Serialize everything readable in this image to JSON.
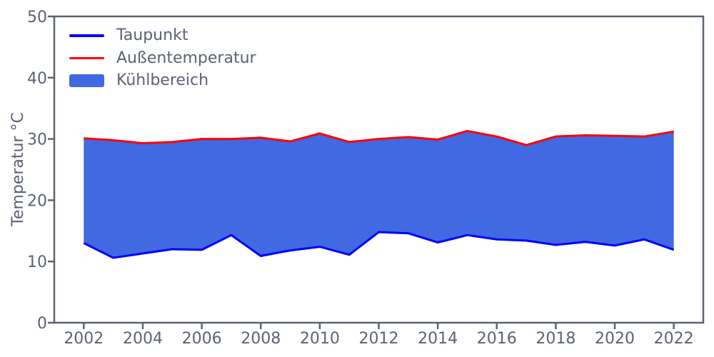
{
  "axes": {
    "ylabel": "Temperatur °C",
    "xlabel": "",
    "axis_color": "#5b6372",
    "text_color": "#5b6372",
    "background": "#ffffff",
    "xlim": [
      2001,
      2023
    ],
    "ylim": [
      0,
      50
    ],
    "xticks": [
      2002,
      2004,
      2006,
      2008,
      2010,
      2012,
      2014,
      2016,
      2018,
      2020,
      2022
    ],
    "yticks": [
      0,
      10,
      20,
      30,
      40,
      50
    ],
    "grid": false
  },
  "legend": {
    "position": "upper left",
    "items": [
      {
        "label": "Taupunkt",
        "swatch": "line",
        "color": "#0000ff"
      },
      {
        "label": "Außentemperatur",
        "swatch": "line",
        "color": "#ff0000"
      },
      {
        "label": "Kühlbereich",
        "swatch": "patch",
        "color": "#4169e1"
      }
    ]
  },
  "chart_data": {
    "type": "area",
    "title": "",
    "xlabel": "",
    "ylabel": "Temperatur °C",
    "xlim": [
      2001,
      2023
    ],
    "ylim": [
      0,
      50
    ],
    "legend_position": "upper left",
    "grid": false,
    "x": [
      2002,
      2003,
      2004,
      2005,
      2006,
      2007,
      2008,
      2009,
      2010,
      2011,
      2012,
      2013,
      2014,
      2015,
      2016,
      2017,
      2018,
      2019,
      2020,
      2021,
      2022
    ],
    "series": [
      {
        "name": "Taupunkt",
        "color": "#0000ff",
        "values": [
          13.0,
          10.6,
          11.3,
          12.0,
          11.9,
          14.3,
          10.9,
          11.8,
          12.4,
          11.1,
          14.8,
          14.6,
          13.1,
          14.3,
          13.6,
          13.4,
          12.7,
          13.2,
          12.6,
          13.6,
          11.9
        ]
      },
      {
        "name": "Außentemperatur",
        "color": "#ff0000",
        "values": [
          30.1,
          29.8,
          29.3,
          29.5,
          30.0,
          30.0,
          30.2,
          29.6,
          30.9,
          29.5,
          30.0,
          30.3,
          29.9,
          31.3,
          30.4,
          29.0,
          30.4,
          30.6,
          30.5,
          30.4,
          31.2
        ]
      }
    ],
    "fill_between": {
      "name": "Kühlbereich",
      "color": "#4169e1",
      "lower_series": "Taupunkt",
      "upper_series": "Außentemperatur"
    }
  }
}
